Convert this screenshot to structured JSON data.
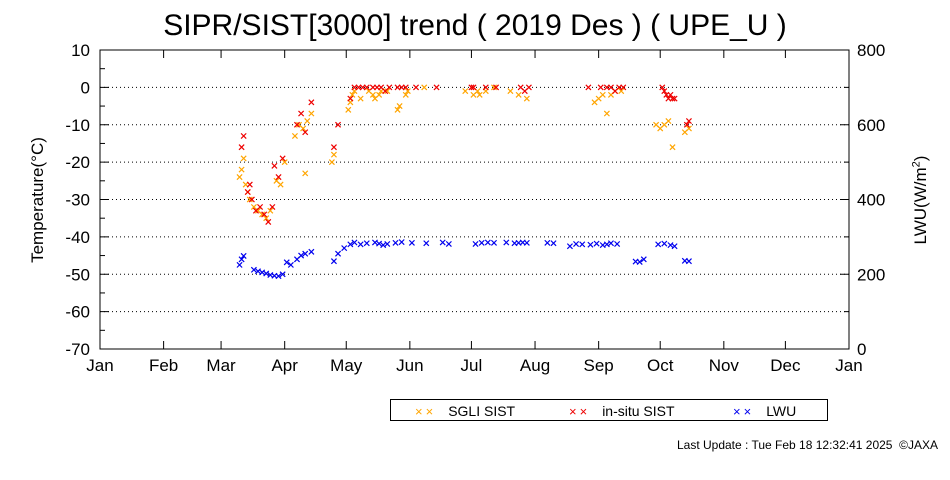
{
  "chart_data": {
    "type": "scatter",
    "title": "SIPR/SIST[3000] trend ( 2019 Des ) ( UPE_U )",
    "ylabel_left": "Temperature(°C)",
    "ylabel_right_prefix": "LWU(W/m",
    "ylabel_right_sup": "2",
    "ylabel_right_suffix": ")",
    "y_left": {
      "range": [
        -70,
        10
      ],
      "ticks": [
        "10",
        "0",
        "-10",
        "-20",
        "-30",
        "-40",
        "-50",
        "-60",
        "-70"
      ]
    },
    "y_right": {
      "range": [
        0,
        800
      ],
      "ticks": [
        "800",
        "600",
        "400",
        "200",
        "0"
      ]
    },
    "x": {
      "unit": "day of year 2019",
      "range": [
        1,
        366
      ],
      "tick_labels": [
        "Jan",
        "Feb",
        "Mar",
        "Apr",
        "May",
        "Jun",
        "Jul",
        "Aug",
        "Sep",
        "Oct",
        "Nov",
        "Dec",
        "Jan"
      ]
    },
    "grid": "horizontal dotted",
    "legend_position": "bottom",
    "series": [
      {
        "name": "SGLI SIST",
        "axis": "left",
        "color": "#ffa500",
        "points": [
          [
            69,
            -24
          ],
          [
            70,
            -22
          ],
          [
            71,
            -19
          ],
          [
            72,
            -26
          ],
          [
            73,
            -28
          ],
          [
            74,
            -30
          ],
          [
            76,
            -32
          ],
          [
            78,
            -33
          ],
          [
            80,
            -34
          ],
          [
            82,
            -35
          ],
          [
            84,
            -33
          ],
          [
            87,
            -25
          ],
          [
            89,
            -26
          ],
          [
            91,
            -20
          ],
          [
            96,
            -13
          ],
          [
            98,
            -10
          ],
          [
            100,
            -11
          ],
          [
            101,
            -23
          ],
          [
            102,
            -9
          ],
          [
            104,
            -7
          ],
          [
            114,
            -20
          ],
          [
            115,
            -18
          ],
          [
            122,
            -6
          ],
          [
            123,
            -4
          ],
          [
            124,
            -2
          ],
          [
            125,
            -1
          ],
          [
            128,
            -3
          ],
          [
            132,
            -1
          ],
          [
            134,
            -2
          ],
          [
            135,
            -3
          ],
          [
            137,
            -2
          ],
          [
            138,
            -1
          ],
          [
            141,
            -1
          ],
          [
            146,
            -6
          ],
          [
            147,
            -5
          ],
          [
            150,
            -2
          ],
          [
            151,
            -1
          ],
          [
            159,
            0
          ],
          [
            179,
            -1
          ],
          [
            183,
            -2
          ],
          [
            185,
            -1
          ],
          [
            186,
            -2
          ],
          [
            189,
            -1
          ],
          [
            193,
            0
          ],
          [
            201,
            -1
          ],
          [
            205,
            -2
          ],
          [
            209,
            -3
          ],
          [
            242,
            -4
          ],
          [
            244,
            -3
          ],
          [
            246,
            -2
          ],
          [
            248,
            -7
          ],
          [
            250,
            -2
          ],
          [
            252,
            -1
          ],
          [
            255,
            -1
          ],
          [
            272,
            -10
          ],
          [
            274,
            -11
          ],
          [
            276,
            -10
          ],
          [
            278,
            -9
          ],
          [
            280,
            -16
          ],
          [
            286,
            -12
          ],
          [
            288,
            -11
          ]
        ]
      },
      {
        "name": "in-situ SIST",
        "axis": "left",
        "color": "#ee0000",
        "points": [
          [
            70,
            -16
          ],
          [
            71,
            -13
          ],
          [
            73,
            -28
          ],
          [
            74,
            -26
          ],
          [
            75,
            -30
          ],
          [
            77,
            -33
          ],
          [
            79,
            -32
          ],
          [
            81,
            -34
          ],
          [
            83,
            -36
          ],
          [
            85,
            -32
          ],
          [
            86,
            -21
          ],
          [
            88,
            -24
          ],
          [
            90,
            -19
          ],
          [
            97,
            -10
          ],
          [
            99,
            -7
          ],
          [
            101,
            -12
          ],
          [
            104,
            -4
          ],
          [
            115,
            -16
          ],
          [
            117,
            -10
          ],
          [
            123,
            -3
          ],
          [
            125,
            0
          ],
          [
            127,
            0
          ],
          [
            129,
            0
          ],
          [
            131,
            0
          ],
          [
            134,
            0
          ],
          [
            136,
            0
          ],
          [
            138,
            0
          ],
          [
            140,
            -1
          ],
          [
            142,
            0
          ],
          [
            146,
            0
          ],
          [
            148,
            0
          ],
          [
            150,
            0
          ],
          [
            155,
            0
          ],
          [
            165,
            0
          ],
          [
            182,
            0
          ],
          [
            183,
            0
          ],
          [
            189,
            0
          ],
          [
            194,
            0
          ],
          [
            206,
            0
          ],
          [
            208,
            -1
          ],
          [
            210,
            0
          ],
          [
            239,
            0
          ],
          [
            245,
            0
          ],
          [
            248,
            0
          ],
          [
            250,
            0
          ],
          [
            252,
            -1
          ],
          [
            254,
            0
          ],
          [
            256,
            0
          ],
          [
            275,
            0
          ],
          [
            276,
            -1
          ],
          [
            277,
            -2
          ],
          [
            278,
            -3
          ],
          [
            279,
            -2
          ],
          [
            280,
            -3
          ],
          [
            281,
            -3
          ],
          [
            287,
            -10
          ],
          [
            288,
            -9
          ]
        ]
      },
      {
        "name": "LWU",
        "axis": "right",
        "color": "#0000ee",
        "points": [
          [
            69,
            225
          ],
          [
            70,
            240
          ],
          [
            71,
            249
          ],
          [
            76,
            212
          ],
          [
            78,
            208
          ],
          [
            80,
            205
          ],
          [
            82,
            202
          ],
          [
            84,
            198
          ],
          [
            86,
            196
          ],
          [
            88,
            195
          ],
          [
            90,
            200
          ],
          [
            92,
            232
          ],
          [
            94,
            225
          ],
          [
            97,
            240
          ],
          [
            99,
            250
          ],
          [
            101,
            255
          ],
          [
            104,
            260
          ],
          [
            115,
            235
          ],
          [
            117,
            255
          ],
          [
            120,
            270
          ],
          [
            123,
            280
          ],
          [
            125,
            285
          ],
          [
            128,
            280
          ],
          [
            131,
            283
          ],
          [
            135,
            285
          ],
          [
            137,
            282
          ],
          [
            139,
            278
          ],
          [
            141,
            281
          ],
          [
            145,
            284
          ],
          [
            148,
            286
          ],
          [
            153,
            284
          ],
          [
            160,
            283
          ],
          [
            168,
            285
          ],
          [
            171,
            281
          ],
          [
            184,
            281
          ],
          [
            187,
            284
          ],
          [
            190,
            285
          ],
          [
            193,
            284
          ],
          [
            199,
            285
          ],
          [
            203,
            283
          ],
          [
            205,
            284
          ],
          [
            207,
            285
          ],
          [
            209,
            284
          ],
          [
            219,
            284
          ],
          [
            222,
            283
          ],
          [
            230,
            275
          ],
          [
            233,
            281
          ],
          [
            236,
            280
          ],
          [
            240,
            279
          ],
          [
            243,
            282
          ],
          [
            246,
            278
          ],
          [
            248,
            280
          ],
          [
            250,
            283
          ],
          [
            253,
            281
          ],
          [
            262,
            234
          ],
          [
            264,
            233
          ],
          [
            266,
            240
          ],
          [
            273,
            280
          ],
          [
            276,
            282
          ],
          [
            279,
            278
          ],
          [
            281,
            275
          ],
          [
            286,
            236
          ],
          [
            288,
            235
          ]
        ]
      }
    ]
  },
  "legend": {
    "items": [
      "SGLI SIST",
      "in-situ SIST",
      "LWU"
    ]
  },
  "footer": {
    "last_update": "Last Update : Tue Feb 18 12:32:41 2025  ©JAXA"
  }
}
